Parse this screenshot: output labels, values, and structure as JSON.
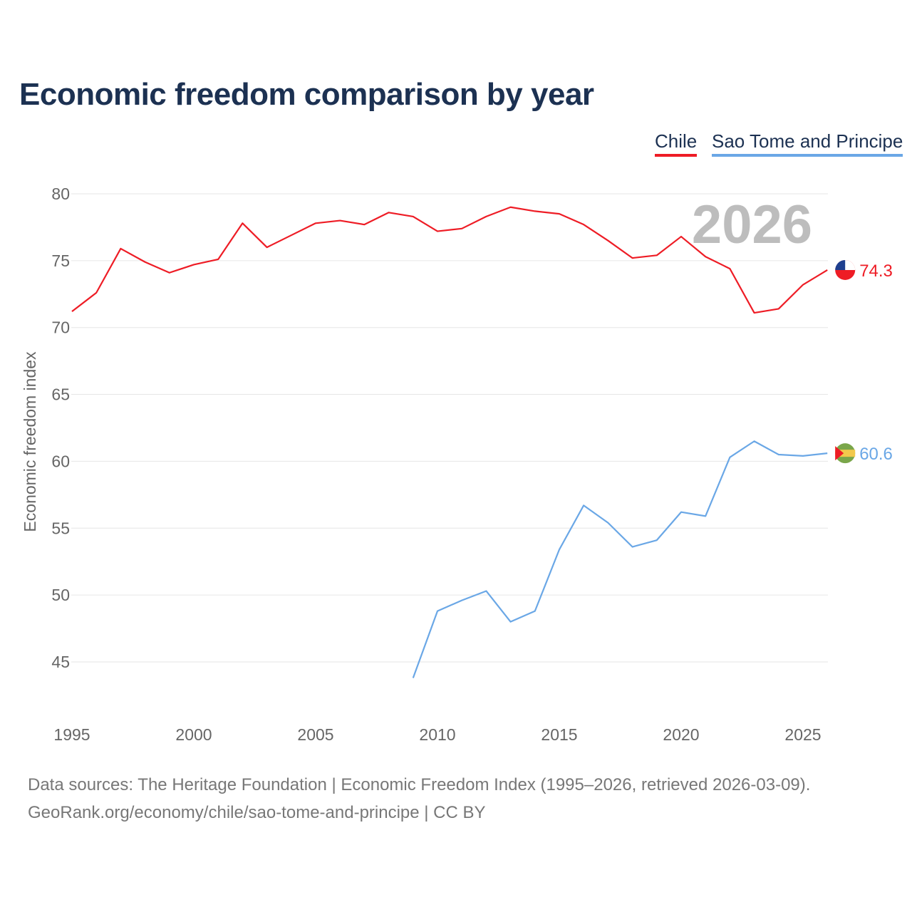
{
  "title": "Economic freedom comparison by year",
  "footer": {
    "line1": "Data sources: The Heritage Foundation | Economic Freedom Index (1995–2026, retrieved 2026-03-09).",
    "line2": "GeoRank.org/economy/chile/sao-tome-and-principe | CC BY"
  },
  "chart_data": {
    "type": "line",
    "title": "Economic freedom comparison by year",
    "xlabel": "",
    "ylabel": "Economic freedom index",
    "xlim": [
      1995,
      2026
    ],
    "ylim": [
      41,
      82
    ],
    "yticks": [
      45,
      50,
      55,
      60,
      65,
      70,
      75,
      80
    ],
    "xticks": [
      1995,
      2000,
      2005,
      2010,
      2015,
      2020,
      2025
    ],
    "year_label": "2026",
    "legend_position": "top-right",
    "series": [
      {
        "name": "Chile",
        "color": "#ee1c25",
        "end_label": "74.3",
        "flag": "chile-flag-icon",
        "x": [
          1995,
          1996,
          1997,
          1998,
          1999,
          2000,
          2001,
          2002,
          2003,
          2004,
          2005,
          2006,
          2007,
          2008,
          2009,
          2010,
          2011,
          2012,
          2013,
          2014,
          2015,
          2016,
          2017,
          2018,
          2019,
          2020,
          2021,
          2022,
          2023,
          2024,
          2025,
          2026
        ],
        "values": [
          71.2,
          72.6,
          75.9,
          74.9,
          74.1,
          74.7,
          75.1,
          77.8,
          76.0,
          76.9,
          77.8,
          78.0,
          77.7,
          78.6,
          78.3,
          77.2,
          77.4,
          78.3,
          79.0,
          78.7,
          78.5,
          77.7,
          76.5,
          75.2,
          75.4,
          76.8,
          75.3,
          74.4,
          71.1,
          71.4,
          73.2,
          74.3
        ]
      },
      {
        "name": "Sao Tome and Principe",
        "color": "#6aa7e6",
        "end_label": "60.6",
        "flag": "sao-tome-flag-icon",
        "x": [
          2009,
          2010,
          2011,
          2012,
          2013,
          2014,
          2015,
          2016,
          2017,
          2018,
          2019,
          2020,
          2021,
          2022,
          2023,
          2024,
          2025,
          2026
        ],
        "values": [
          43.8,
          48.8,
          49.6,
          50.3,
          48.0,
          48.8,
          53.4,
          56.7,
          55.4,
          53.6,
          54.1,
          56.2,
          55.9,
          60.3,
          61.5,
          60.5,
          60.4,
          60.6
        ]
      }
    ]
  }
}
